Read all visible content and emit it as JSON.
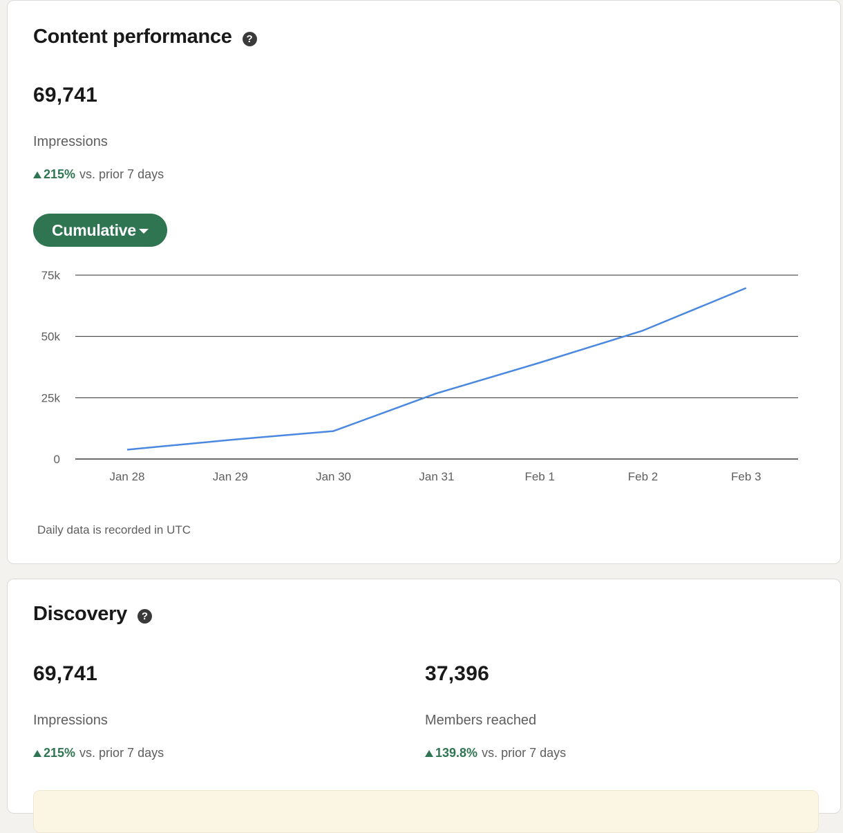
{
  "content_performance": {
    "title": "Content performance",
    "help_icon": "question-circle-icon",
    "impressions": {
      "value": "69,741",
      "label": "Impressions",
      "change_pct": "215%",
      "change_text": "vs. prior 7 days"
    },
    "view_toggle": {
      "label": "Cumulative",
      "icon": "caret-down-icon"
    },
    "footnote": "Daily data is recorded in UTC"
  },
  "chart_data": {
    "type": "line",
    "categories": [
      "Jan 28",
      "Jan 29",
      "Jan 30",
      "Jan 31",
      "Feb 1",
      "Feb 2",
      "Feb 3"
    ],
    "series": [
      {
        "values": [
          3800,
          7800,
          11400,
          26800,
          39300,
          52400,
          69741
        ]
      }
    ],
    "y_ticks": [
      0,
      25000,
      50000,
      75000
    ],
    "y_tick_labels": [
      "0",
      "25k",
      "50k",
      "75k"
    ],
    "ylim": [
      0,
      75000
    ],
    "grid": true,
    "line_color": "#4a88e0"
  },
  "discovery": {
    "title": "Discovery",
    "help_icon": "question-circle-icon",
    "impressions": {
      "value": "69,741",
      "label": "Impressions",
      "change_pct": "215%",
      "change_text": "vs. prior 7 days"
    },
    "members_reached": {
      "value": "37,396",
      "label": "Members reached",
      "change_pct": "139.8%",
      "change_text": "vs. prior 7 days"
    }
  },
  "colors": {
    "accent_green": "#2f7552",
    "page_background": "#f4f2ee",
    "banner_background": "#fbf5e3"
  }
}
